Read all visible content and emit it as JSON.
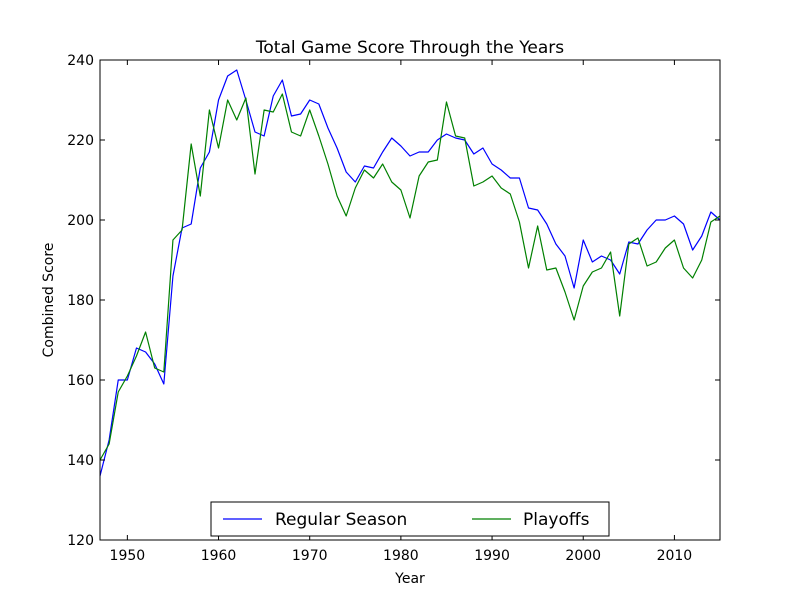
{
  "chart_data": {
    "type": "line",
    "title": "Total Game Score Through the Years",
    "xlabel": "Year",
    "ylabel": "Combined Score",
    "xlim": [
      1947,
      2015
    ],
    "ylim": [
      120,
      240
    ],
    "xticks": [
      1950,
      1960,
      1970,
      1980,
      1990,
      2000,
      2010
    ],
    "yticks": [
      120,
      140,
      160,
      180,
      200,
      220,
      240
    ],
    "grid": false,
    "legend_position": "lower-center",
    "x": [
      1947,
      1948,
      1949,
      1950,
      1951,
      1952,
      1953,
      1954,
      1955,
      1956,
      1957,
      1958,
      1959,
      1960,
      1961,
      1962,
      1963,
      1964,
      1965,
      1966,
      1967,
      1968,
      1969,
      1970,
      1971,
      1972,
      1973,
      1974,
      1975,
      1976,
      1977,
      1978,
      1979,
      1980,
      1981,
      1982,
      1983,
      1984,
      1985,
      1986,
      1987,
      1988,
      1989,
      1990,
      1991,
      1992,
      1993,
      1994,
      1995,
      1996,
      1997,
      1998,
      1999,
      2000,
      2001,
      2002,
      2003,
      2004,
      2005,
      2006,
      2007,
      2008,
      2009,
      2010,
      2011,
      2012,
      2013,
      2014,
      2015
    ],
    "series": [
      {
        "name": "Regular Season",
        "color": "#0000ff",
        "values": [
          136,
          145,
          160,
          160,
          168,
          167,
          164,
          159,
          186,
          198,
          199,
          213,
          217,
          230,
          236,
          237.5,
          230,
          222,
          221,
          231,
          235,
          226,
          226.5,
          230,
          229,
          223,
          218,
          212,
          209.5,
          213.5,
          213,
          217,
          220.5,
          218.5,
          216,
          217,
          217,
          220,
          221.5,
          220.5,
          220,
          216.5,
          218,
          214,
          212.5,
          210.5,
          210.5,
          203,
          202.5,
          199,
          194,
          191,
          183,
          195,
          189.5,
          191,
          190,
          186.5,
          194.5,
          194,
          197.5,
          200,
          200,
          201,
          199,
          192.5,
          196,
          202,
          200
        ]
      },
      {
        "name": "Playoffs",
        "color": "#008000",
        "values": [
          140,
          144,
          157,
          161,
          166,
          172,
          163,
          162,
          195,
          197.5,
          219,
          206,
          227.5,
          218,
          230,
          225,
          230.5,
          211.5,
          227.5,
          227,
          231.5,
          222,
          221,
          227.5,
          221,
          214,
          206,
          201,
          208,
          212.5,
          210.5,
          214,
          209.5,
          207.5,
          200.5,
          211,
          214.5,
          215,
          229.5,
          221,
          220.5,
          208.5,
          209.5,
          211,
          208,
          206.5,
          199.5,
          188,
          198.5,
          187.5,
          188,
          182,
          175,
          183.5,
          187,
          188,
          192,
          176,
          194,
          195.5,
          188.5,
          189.5,
          193,
          195,
          188,
          185.5,
          190,
          199.5,
          201
        ]
      }
    ]
  }
}
